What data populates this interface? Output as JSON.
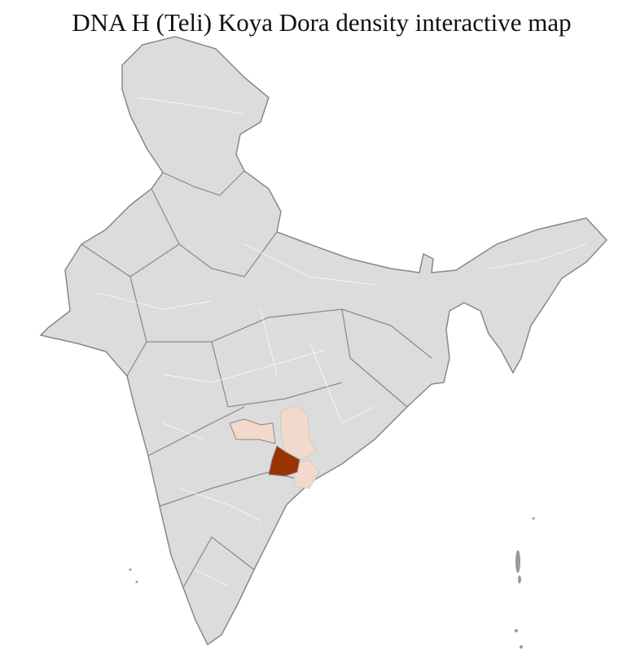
{
  "title": "DNA H (Teli) Koya Dora density interactive map",
  "colors": {
    "base_fill": "#dcdcdc",
    "district_border": "#ffffff",
    "state_border": "#888888",
    "low_density": "#f2d9cc",
    "high_density": "#993300"
  },
  "regions": [
    {
      "level": "low",
      "fill": "#f2d9cc"
    },
    {
      "level": "low",
      "fill": "#f2d9cc"
    },
    {
      "level": "low",
      "fill": "#f2d9cc"
    },
    {
      "level": "high",
      "fill": "#993300"
    }
  ]
}
